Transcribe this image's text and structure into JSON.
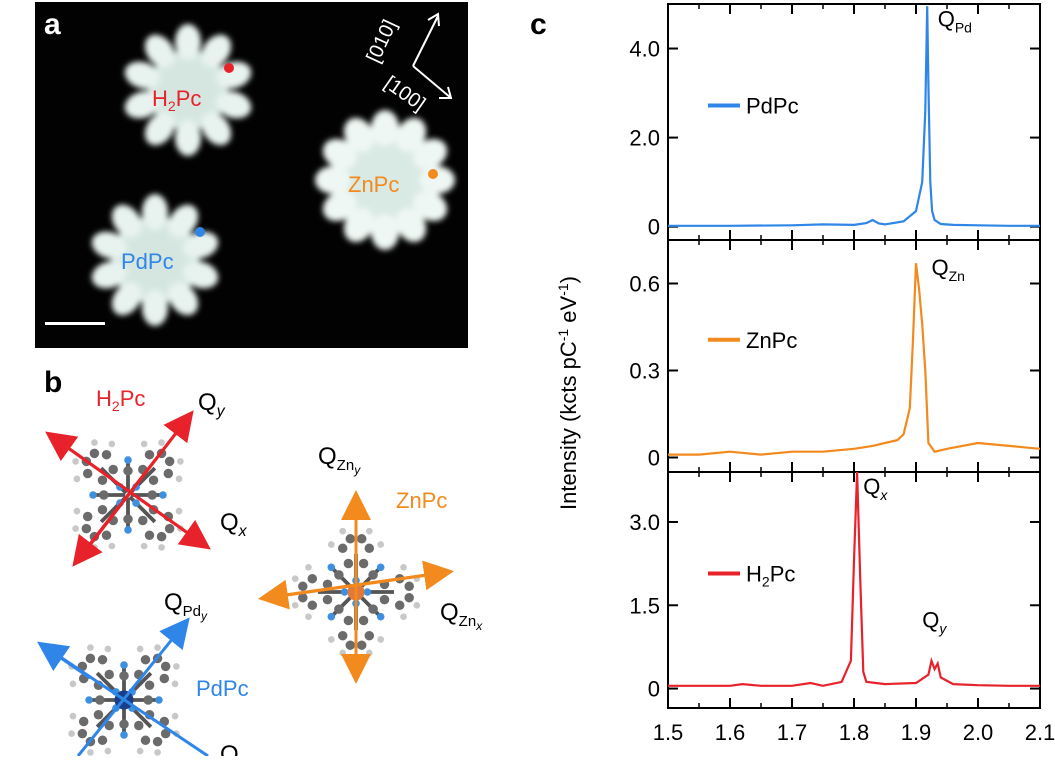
{
  "panels": {
    "a": {
      "label": "a",
      "axis_010": "[010]",
      "axis_100": "[100]",
      "molecules": [
        {
          "name": "H2Pc",
          "label_main": "H",
          "label_sub": "2",
          "label_rest": "Pc",
          "color": "#e8222a"
        },
        {
          "name": "ZnPc",
          "label_main": "ZnPc",
          "color": "#f28a1e"
        },
        {
          "name": "PdPc",
          "label_main": "PdPc",
          "color": "#2f86e8"
        }
      ]
    },
    "b": {
      "label": "b",
      "h2pc": {
        "label_main": "H",
        "label_sub": "2",
        "label_rest": "Pc",
        "qy": "Q",
        "qy_sub": "y",
        "qx": "Q",
        "qx_sub": "x"
      },
      "znpc": {
        "label": "ZnPc",
        "qy": "Q",
        "qy_sub": "Zn",
        "qy_subsub": "y",
        "qx": "Q",
        "qx_sub": "Zn",
        "qx_subsub": "x"
      },
      "pdpc": {
        "label": "PdPc",
        "qy": "Q",
        "qy_sub": "Pd",
        "qy_subsub": "y",
        "qx_partial": "Q"
      }
    },
    "c": {
      "label": "c",
      "ylabel_main": "Intensity (kcts pC",
      "ylabel_sup1": "-1",
      "ylabel_mid": " eV",
      "ylabel_sup2": "-1",
      "ylabel_end": ")",
      "x_ticks": [
        "1.5",
        "1.6",
        "1.7",
        "1.8",
        "1.9",
        "2.0",
        "2.1"
      ]
    }
  },
  "chart_data": [
    {
      "type": "line",
      "name": "PdPc spectrum",
      "series": [
        {
          "name": "PdPc",
          "color": "#2f86e8",
          "x": [
            1.5,
            1.6,
            1.7,
            1.75,
            1.8,
            1.82,
            1.83,
            1.84,
            1.85,
            1.88,
            1.9,
            1.91,
            1.915,
            1.918,
            1.92,
            1.923,
            1.926,
            1.93,
            1.94,
            1.96,
            2.0,
            2.05,
            2.1
          ],
          "y": [
            0.02,
            0.02,
            0.03,
            0.05,
            0.04,
            0.08,
            0.15,
            0.07,
            0.05,
            0.12,
            0.35,
            1.0,
            2.6,
            4.95,
            3.2,
            1.0,
            0.35,
            0.15,
            0.06,
            0.04,
            0.03,
            0.02,
            0.02
          ]
        }
      ],
      "y_ticks": [
        "0",
        "2.0",
        "4.0"
      ],
      "ylim": [
        -0.3,
        5.0
      ],
      "annotation": {
        "text": "Q",
        "sub": "Pd",
        "x": 1.935,
        "y": 4.5
      }
    },
    {
      "type": "line",
      "name": "ZnPc spectrum",
      "series": [
        {
          "name": "ZnPc",
          "color": "#f28a1e",
          "x": [
            1.5,
            1.55,
            1.6,
            1.65,
            1.7,
            1.75,
            1.8,
            1.83,
            1.85,
            1.87,
            1.88,
            1.89,
            1.895,
            1.9,
            1.905,
            1.91,
            1.915,
            1.92,
            1.93,
            1.95,
            2.0,
            2.05,
            2.1
          ],
          "y": [
            0.01,
            0.01,
            0.02,
            0.01,
            0.02,
            0.02,
            0.03,
            0.04,
            0.05,
            0.06,
            0.08,
            0.17,
            0.4,
            0.67,
            0.58,
            0.46,
            0.3,
            0.05,
            0.02,
            0.03,
            0.05,
            0.04,
            0.03
          ]
        }
      ],
      "y_ticks": [
        "0",
        "0.3",
        "0.6"
      ],
      "ylim": [
        -0.05,
        0.75
      ],
      "annotation": {
        "text": "Q",
        "sub": "Zn",
        "x": 1.925,
        "y": 0.63
      }
    },
    {
      "type": "line",
      "name": "H2Pc spectrum",
      "series": [
        {
          "name": "H2Pc",
          "color": "#e8222a",
          "x": [
            1.5,
            1.6,
            1.62,
            1.65,
            1.7,
            1.73,
            1.75,
            1.78,
            1.795,
            1.8,
            1.805,
            1.81,
            1.815,
            1.82,
            1.85,
            1.9,
            1.92,
            1.925,
            1.93,
            1.935,
            1.94,
            1.96,
            2.0,
            2.05,
            2.1
          ],
          "y": [
            0.05,
            0.05,
            0.08,
            0.05,
            0.05,
            0.1,
            0.05,
            0.12,
            0.5,
            2.3,
            3.9,
            2.0,
            0.3,
            0.12,
            0.08,
            0.1,
            0.25,
            0.5,
            0.35,
            0.45,
            0.2,
            0.08,
            0.06,
            0.05,
            0.05
          ]
        }
      ],
      "y_ticks": [
        "0",
        "1.5",
        "3.0"
      ],
      "ylim": [
        -0.35,
        3.9
      ],
      "annotation": {
        "text": "Q",
        "sub": "x",
        "x": 1.815,
        "y": 3.5
      },
      "annotation2": {
        "text": "Q",
        "sub": "y",
        "x": 1.91,
        "y": 1.1
      }
    }
  ]
}
